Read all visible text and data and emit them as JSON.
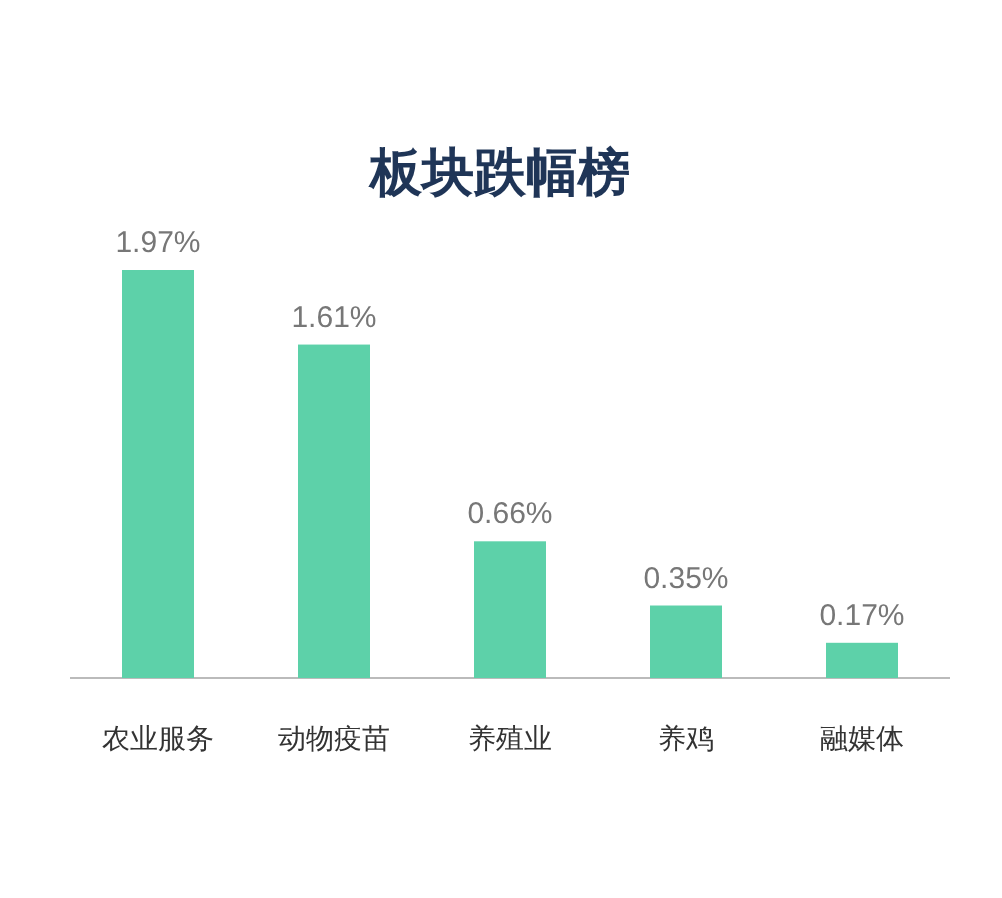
{
  "chart_data": {
    "type": "bar",
    "title": "板块跌幅榜",
    "categories": [
      "农业服务",
      "动物疫苗",
      "养殖业",
      "养鸡",
      "融媒体"
    ],
    "values": [
      1.97,
      1.61,
      0.66,
      0.35,
      0.17
    ],
    "value_labels": [
      "1.97%",
      "1.61%",
      "0.66%",
      "0.35%",
      "0.17%"
    ],
    "color": "#5dd1a9"
  }
}
